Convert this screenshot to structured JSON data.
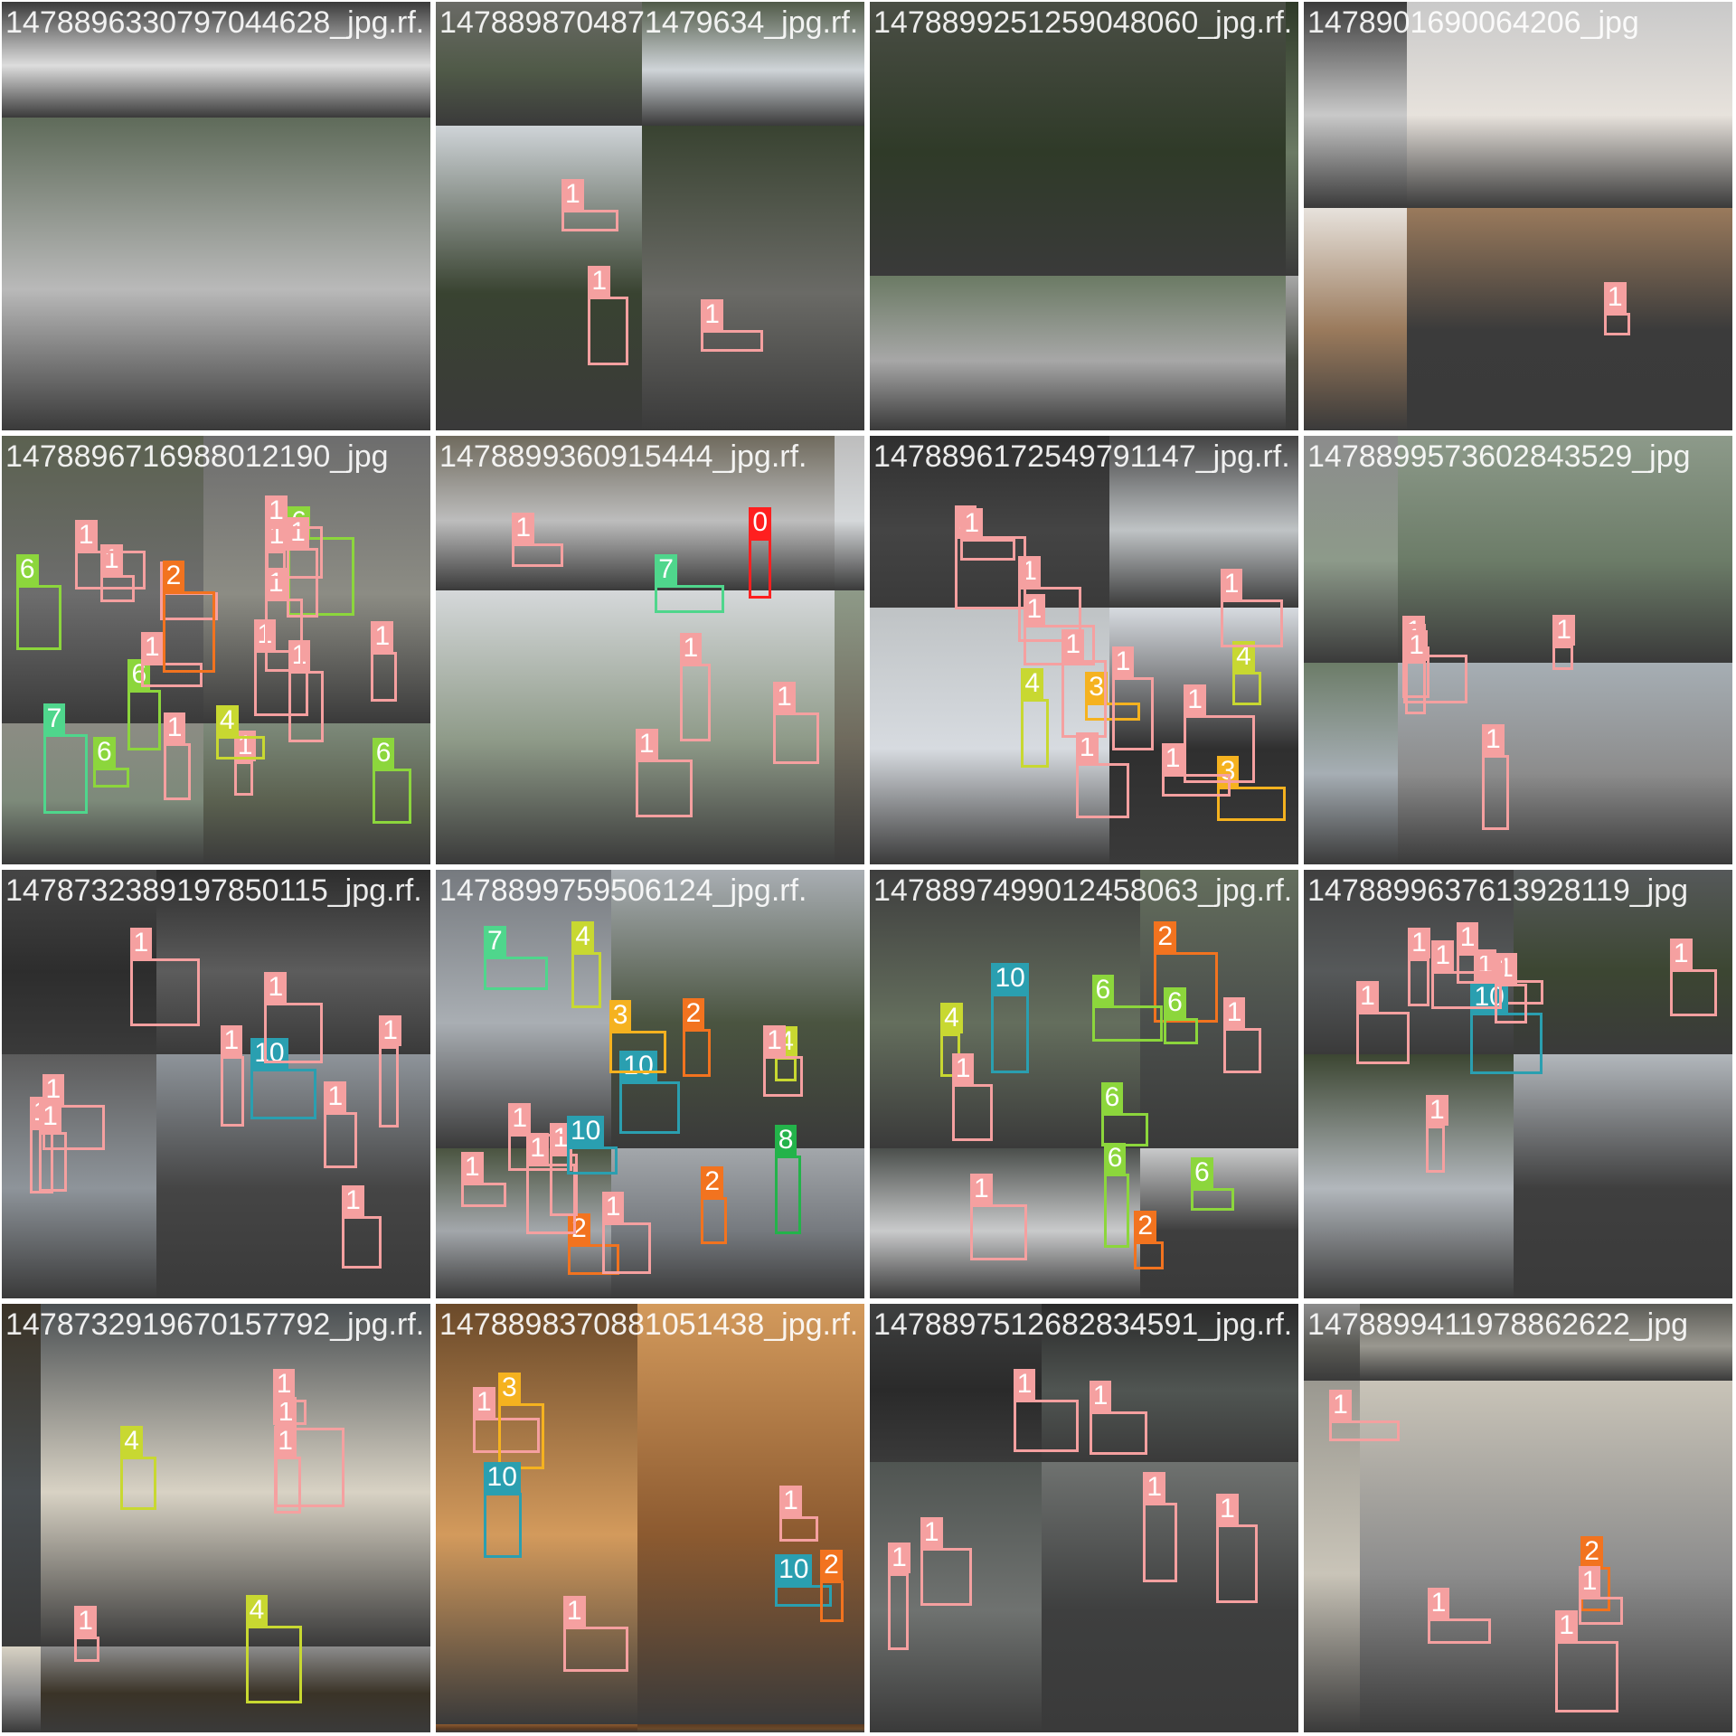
{
  "grid_caption": "",
  "class_colors": {
    "1": "#f5a0a0",
    "2": "#f2731f",
    "3": "#f5b21f",
    "4": "#c8d831",
    "6": "#8cd63c",
    "7": "#4fd68c",
    "8": "#23b34a",
    "10": "#2a9fb0",
    "0": "#ff1f1f"
  },
  "tiles": [
    {
      "filename": "1478896330797044628_jpg.rf.",
      "boxes": []
    },
    {
      "filename": "1478898704871479634_jpg.rf.",
      "boxes": [
        {
          "cls": "1"
        },
        {
          "cls": "1"
        },
        {
          "cls": "1"
        }
      ]
    },
    {
      "filename": "1478899251259048060_jpg.rf.",
      "boxes": []
    },
    {
      "filename": "1478901690064206_jpg",
      "boxes": [
        {
          "cls": "1"
        }
      ]
    },
    {
      "filename": "1478896716988012190_jpg",
      "boxes": [
        {
          "cls": "6"
        },
        {
          "cls": "6"
        },
        {
          "cls": "7"
        },
        {
          "cls": "6"
        },
        {
          "cls": "6"
        },
        {
          "cls": "6"
        },
        {
          "cls": "1"
        },
        {
          "cls": "1"
        },
        {
          "cls": "1"
        },
        {
          "cls": "1"
        },
        {
          "cls": "1"
        },
        {
          "cls": "1"
        },
        {
          "cls": "1"
        },
        {
          "cls": "1"
        },
        {
          "cls": "1"
        },
        {
          "cls": "1"
        },
        {
          "cls": "1"
        },
        {
          "cls": "1"
        },
        {
          "cls": "4"
        },
        {
          "cls": "1"
        },
        {
          "cls": "2"
        }
      ]
    },
    {
      "filename": "1478899360915444_jpg.rf.",
      "boxes": [
        {
          "cls": "1"
        },
        {
          "cls": "1"
        },
        {
          "cls": "1"
        },
        {
          "cls": "1"
        },
        {
          "cls": "7"
        },
        {
          "cls": "0"
        }
      ]
    },
    {
      "filename": "1478896172549791147_jpg.rf.",
      "boxes": [
        {
          "cls": "1"
        },
        {
          "cls": "4"
        },
        {
          "cls": "3"
        },
        {
          "cls": "3"
        },
        {
          "cls": "1"
        },
        {
          "cls": "1"
        },
        {
          "cls": "1"
        },
        {
          "cls": "1"
        },
        {
          "cls": "1"
        },
        {
          "cls": "1"
        },
        {
          "cls": "1"
        },
        {
          "cls": "1"
        },
        {
          "cls": "1"
        },
        {
          "cls": "4"
        }
      ]
    },
    {
      "filename": "1478899573602843529_jpg",
      "boxes": [
        {
          "cls": "1"
        },
        {
          "cls": "1"
        },
        {
          "cls": "1"
        },
        {
          "cls": "1"
        },
        {
          "cls": "1"
        }
      ]
    },
    {
      "filename": "1478732389197850115_jpg.rf.",
      "boxes": [
        {
          "cls": "1"
        },
        {
          "cls": "1"
        },
        {
          "cls": "1"
        },
        {
          "cls": "1"
        },
        {
          "cls": "1"
        },
        {
          "cls": "1"
        },
        {
          "cls": "1"
        },
        {
          "cls": "1"
        },
        {
          "cls": "10"
        },
        {
          "cls": "1"
        }
      ]
    },
    {
      "filename": "1478899759506124_jpg.rf.",
      "boxes": [
        {
          "cls": "1"
        },
        {
          "cls": "4"
        },
        {
          "cls": "2"
        },
        {
          "cls": "2"
        },
        {
          "cls": "8"
        },
        {
          "cls": "1"
        },
        {
          "cls": "1"
        },
        {
          "cls": "10"
        },
        {
          "cls": "1"
        },
        {
          "cls": "2"
        },
        {
          "cls": "1"
        },
        {
          "cls": "7"
        },
        {
          "cls": "3"
        },
        {
          "cls": "4"
        },
        {
          "cls": "1"
        },
        {
          "cls": "10"
        }
      ]
    },
    {
      "filename": "1478897499012458063_jpg.rf.",
      "boxes": [
        {
          "cls": "1"
        },
        {
          "cls": "4"
        },
        {
          "cls": "2"
        },
        {
          "cls": "10"
        },
        {
          "cls": "2"
        },
        {
          "cls": "6"
        },
        {
          "cls": "1"
        },
        {
          "cls": "1"
        },
        {
          "cls": "6"
        },
        {
          "cls": "6"
        },
        {
          "cls": "6"
        },
        {
          "cls": "6"
        }
      ]
    },
    {
      "filename": "1478899637613928119_jpg",
      "boxes": [
        {
          "cls": "1"
        },
        {
          "cls": "10"
        },
        {
          "cls": "1"
        },
        {
          "cls": "1"
        },
        {
          "cls": "1"
        },
        {
          "cls": "1"
        },
        {
          "cls": "1"
        },
        {
          "cls": "1"
        },
        {
          "cls": "1"
        }
      ]
    },
    {
      "filename": "1478732919670157792_jpg.rf.",
      "boxes": [
        {
          "cls": "1"
        },
        {
          "cls": "1"
        },
        {
          "cls": "1"
        },
        {
          "cls": "4"
        },
        {
          "cls": "4"
        },
        {
          "cls": "1"
        }
      ]
    },
    {
      "filename": "1478898370881051438_jpg.rf.",
      "boxes": [
        {
          "cls": "1"
        },
        {
          "cls": "1"
        },
        {
          "cls": "3"
        },
        {
          "cls": "1"
        },
        {
          "cls": "10"
        },
        {
          "cls": "10"
        },
        {
          "cls": "2"
        }
      ]
    },
    {
      "filename": "1478897512682834591_jpg.rf.",
      "boxes": [
        {
          "cls": "1"
        },
        {
          "cls": "1"
        },
        {
          "cls": "1"
        },
        {
          "cls": "1"
        },
        {
          "cls": "1"
        },
        {
          "cls": "1"
        }
      ]
    },
    {
      "filename": "1478899411978862622_jpg",
      "boxes": [
        {
          "cls": "1"
        },
        {
          "cls": "1"
        },
        {
          "cls": "1"
        },
        {
          "cls": "2"
        },
        {
          "cls": "1"
        }
      ]
    }
  ]
}
